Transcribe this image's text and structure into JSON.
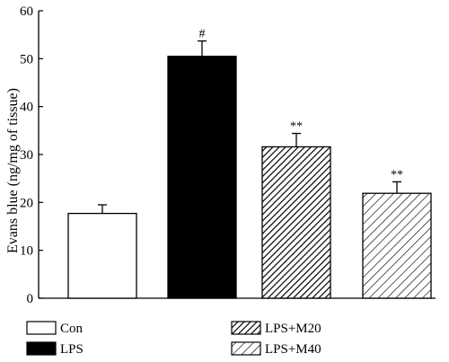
{
  "chart_data": {
    "type": "bar",
    "title": "",
    "xlabel": "",
    "ylabel": "Evans blue (ng/mg of tissue)",
    "ylim": [
      0,
      60
    ],
    "yticks": [
      0,
      10,
      20,
      30,
      40,
      50,
      60
    ],
    "categories": [
      "Con",
      "LPS",
      "LPS+M20",
      "LPS+M40"
    ],
    "values": [
      17.7,
      50.5,
      31.6,
      21.9
    ],
    "errors": [
      1.8,
      3.2,
      2.8,
      2.4
    ],
    "annotations": [
      "",
      "#",
      "**",
      "**"
    ],
    "fills": [
      "white",
      "black",
      "hatch-dense",
      "hatch-sparse"
    ],
    "legend": {
      "entries": [
        "Con",
        "LPS",
        "LPS+M20",
        "LPS+M40"
      ],
      "position": "bottom"
    },
    "grid": false
  }
}
